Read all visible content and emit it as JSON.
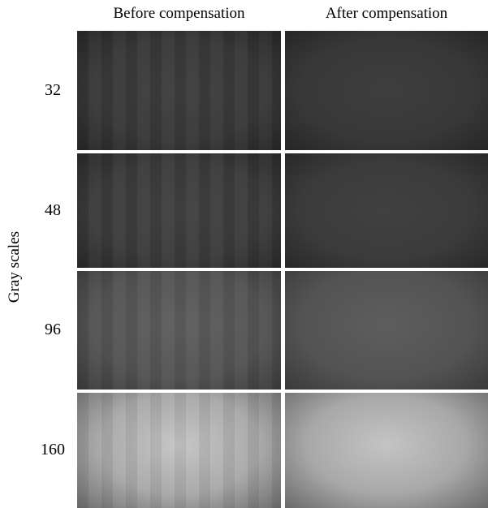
{
  "columns": [
    "Before compensation",
    "After compensation"
  ],
  "axis_label": "Gray scales",
  "rows": [
    "32",
    "48",
    "96",
    "160"
  ]
}
